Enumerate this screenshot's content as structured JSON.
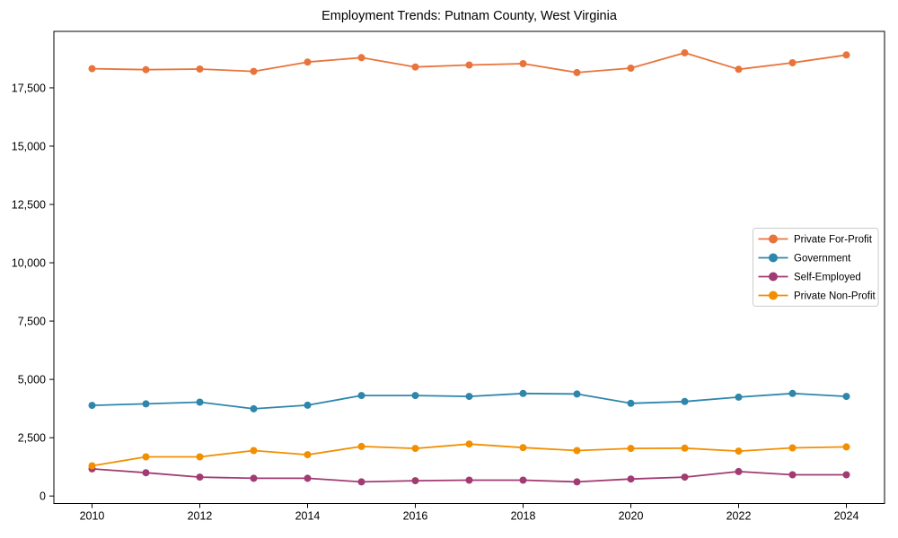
{
  "figure": {
    "background": "#ffffff"
  },
  "chart_data": {
    "type": "line",
    "title": "Employment Trends: Putnam County, West Virginia",
    "xlabel": "",
    "ylabel": "",
    "x": [
      2010,
      2011,
      2012,
      2013,
      2014,
      2015,
      2016,
      2017,
      2018,
      2019,
      2020,
      2021,
      2022,
      2023,
      2024
    ],
    "series": [
      {
        "name": "Private For-Profit",
        "color": "#E8743B",
        "values": [
          18320,
          18280,
          18305,
          18205,
          18605,
          18795,
          18395,
          18480,
          18535,
          18155,
          18345,
          19000,
          18295,
          18575,
          18910
        ]
      },
      {
        "name": "Government",
        "color": "#2E86AB",
        "values": [
          3885,
          3950,
          4025,
          3740,
          3895,
          4310,
          4310,
          4270,
          4395,
          4375,
          3975,
          4050,
          4240,
          4395,
          4270
        ]
      },
      {
        "name": "Self-Employed",
        "color": "#A23B72",
        "values": [
          1165,
          1000,
          810,
          760,
          760,
          605,
          655,
          680,
          680,
          605,
          730,
          810,
          1050,
          910,
          910
        ]
      },
      {
        "name": "Private Non-Profit",
        "color": "#F18F01",
        "values": [
          1295,
          1680,
          1680,
          1950,
          1770,
          2125,
          2040,
          2230,
          2075,
          1950,
          2040,
          2050,
          1925,
          2065,
          2105
        ]
      }
    ],
    "xlim": [
      2009.292,
      2024.708
    ],
    "ylim": [
      -320,
      19920
    ],
    "xticks": {
      "values": [
        2010,
        2012,
        2014,
        2016,
        2018,
        2020,
        2022,
        2024
      ],
      "labels": [
        "2010",
        "2012",
        "2014",
        "2016",
        "2018",
        "2020",
        "2022",
        "2024"
      ]
    },
    "yticks": {
      "values": [
        0,
        2500,
        5000,
        7500,
        10000,
        12500,
        15000,
        17500
      ],
      "labels": [
        "0",
        "2,500",
        "5,000",
        "7,500",
        "10,000",
        "12,500",
        "15,000",
        "17,500"
      ]
    },
    "grid": false,
    "axis_color": "#000000",
    "tick_label_color": "#000000",
    "legend": {
      "position": "center right",
      "border_color": "#cccccc",
      "background": "#ffffff",
      "labels": [
        "Private For-Profit",
        "Government",
        "Self-Employed",
        "Private Non-Profit"
      ]
    }
  }
}
